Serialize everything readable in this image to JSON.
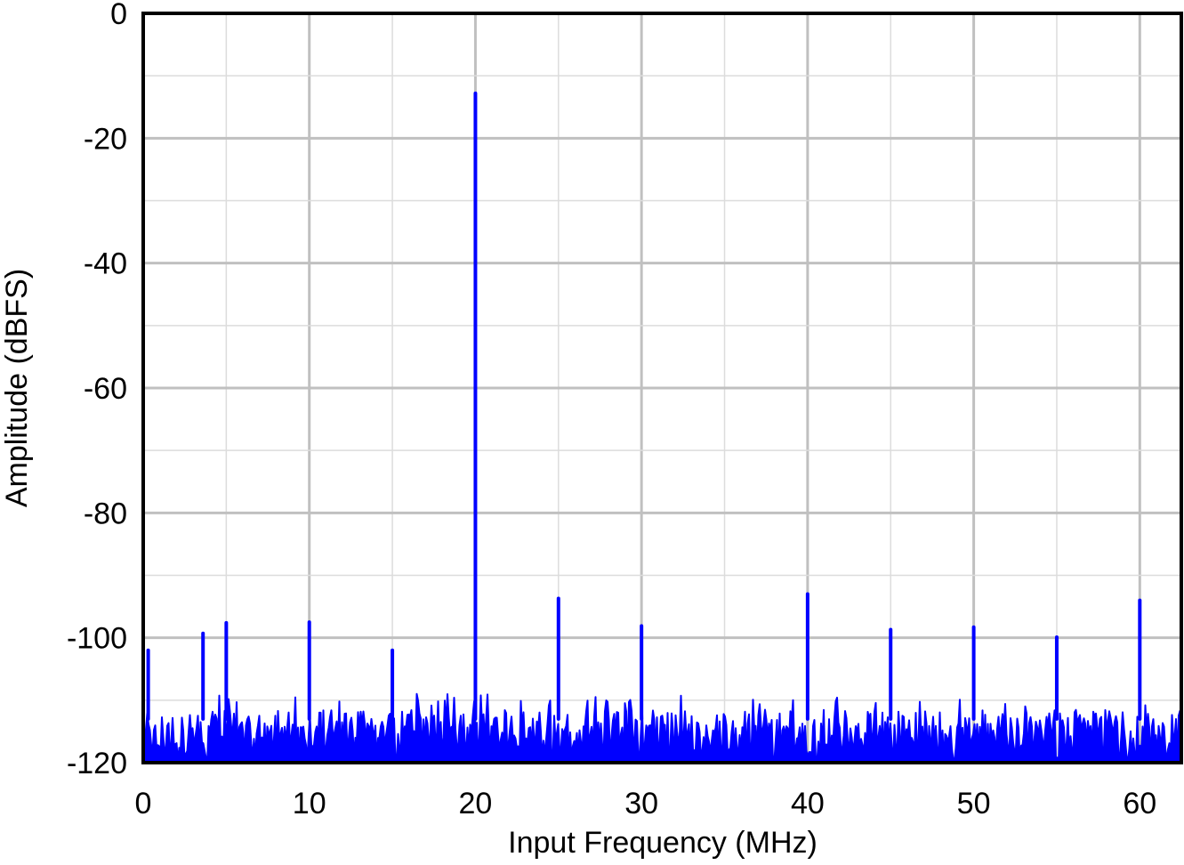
{
  "chart_data": {
    "type": "line",
    "title": "",
    "xlabel": "Input Frequency (MHz)",
    "ylabel": "Amplitude (dBFS)",
    "xlim": [
      0,
      62.5
    ],
    "ylim": [
      -120,
      0
    ],
    "xticks": [
      0,
      10,
      20,
      30,
      40,
      50,
      60
    ],
    "yticks": [
      0,
      -20,
      -40,
      -60,
      -80,
      -100,
      -120
    ],
    "minor_grid_x_step": 5,
    "minor_grid_y_step": 10,
    "grid": true,
    "series_color": "#0000ff",
    "grid_major_color": "#c0c0c0",
    "grid_minor_color": "#dcdcdc",
    "noise_floor_dBFS": {
      "min": -120,
      "typical_top": -113,
      "max": -109
    },
    "spurs": [
      {
        "x": 0.3,
        "y": -102
      },
      {
        "x": 3.6,
        "y": -99.3
      },
      {
        "x": 5.0,
        "y": -97.6
      },
      {
        "x": 10.0,
        "y": -97.5
      },
      {
        "x": 15.0,
        "y": -102
      },
      {
        "x": 20.0,
        "y": -12.8
      },
      {
        "x": 25.0,
        "y": -93.7
      },
      {
        "x": 30.0,
        "y": -98.1
      },
      {
        "x": 40.0,
        "y": -93.0
      },
      {
        "x": 45.0,
        "y": -98.7
      },
      {
        "x": 50.0,
        "y": -98.3
      },
      {
        "x": 55.0,
        "y": -99.9
      },
      {
        "x": 60.0,
        "y": -94.0
      }
    ]
  }
}
